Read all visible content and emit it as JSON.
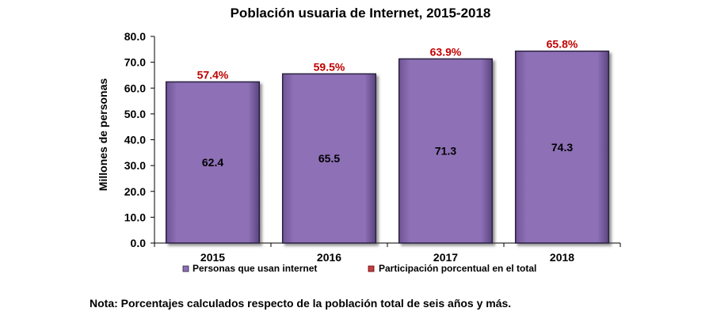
{
  "chart_data": {
    "type": "bar",
    "title": "Población usuaria de Internet, 2015-2018",
    "ylabel": "Millones de personas",
    "xlabel": "",
    "ylim": [
      0,
      80
    ],
    "yticks": [
      "0.0",
      "10.0",
      "20.0",
      "30.0",
      "40.0",
      "50.0",
      "60.0",
      "70.0",
      "80.0"
    ],
    "categories": [
      "2015",
      "2016",
      "2017",
      "2018"
    ],
    "series": [
      {
        "name": "Personas que usan internet",
        "values": [
          62.4,
          65.5,
          71.3,
          74.3
        ],
        "labels": [
          "62.4",
          "65.5",
          "71.3",
          "74.3"
        ],
        "color": "#8e70b6"
      },
      {
        "name": "Participación porcentual en el total",
        "values": [
          57.4,
          59.5,
          63.9,
          65.8
        ],
        "labels": [
          "57.4%",
          "59.5%",
          "63.9%",
          "65.8%"
        ],
        "color": "#c00000"
      }
    ],
    "legend_position": "bottom",
    "grid": false
  },
  "note": "Nota: Porcentajes calculados respecto de la población total de seis años y más.",
  "colors": {
    "bar_fill": "#8e70b6",
    "bar_stroke": "#2b2040",
    "percent_text": "#c00000",
    "axis": "#000000"
  }
}
